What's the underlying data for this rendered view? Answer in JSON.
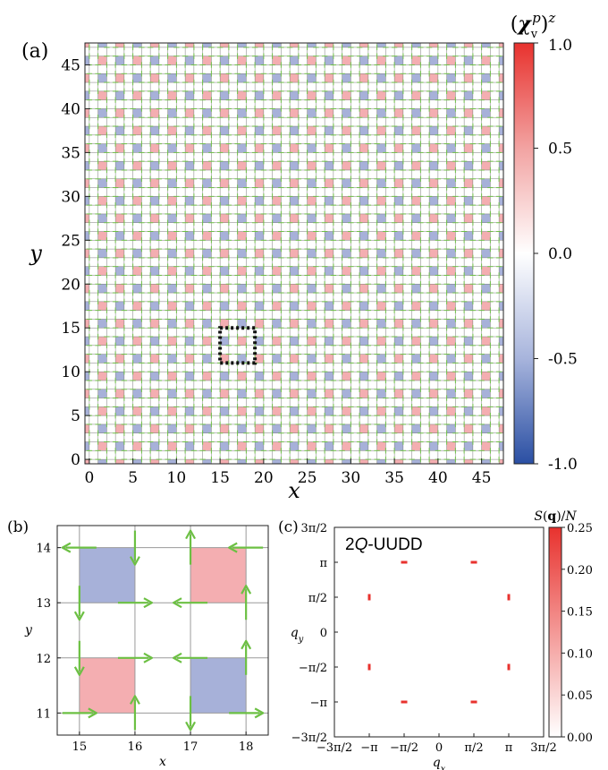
{
  "chart_data": [
    {
      "type": "heatmap",
      "panel": "(a)",
      "xlabel": "x",
      "ylabel": "y",
      "xlim": [
        -0.5,
        47.5
      ],
      "ylim": [
        -0.5,
        47.5
      ],
      "xticks": [
        0,
        5,
        10,
        15,
        20,
        25,
        30,
        35,
        40,
        45
      ],
      "yticks": [
        0,
        5,
        10,
        15,
        20,
        25,
        30,
        35,
        40,
        45
      ],
      "colorbar": {
        "title": "(χ_v^p)^z",
        "range": [
          -1.0,
          1.0
        ],
        "tick_values": [
          1.0,
          0.5,
          0.0,
          -0.5,
          -1.0
        ],
        "tick_labels": [
          "1.0",
          "0.5",
          "0.0",
          "-0.5",
          "-1.0"
        ],
        "colormap": [
          "#2a4fa3",
          "#ffffff",
          "#e8322e"
        ]
      },
      "pattern": {
        "description": "period-4 checkerboard of scalar chirality on plaquettes with green in-plane spin arrows",
        "positive_plaquettes_xy": [
          [
            15,
            11
          ],
          [
            17,
            13
          ]
        ],
        "negative_plaquettes_xy": [
          [
            15,
            13
          ],
          [
            17,
            11
          ]
        ],
        "positive_value": 0.35,
        "negative_value": -0.35
      },
      "highlight_box": {
        "x": [
          15,
          19
        ],
        "y": [
          11,
          15
        ]
      }
    },
    {
      "type": "heatmap",
      "panel": "(b)",
      "xlabel": "x",
      "ylabel": "y",
      "xlim": [
        14.6,
        18.4
      ],
      "ylim": [
        10.6,
        14.4
      ],
      "xticks": [
        15,
        16,
        17,
        18
      ],
      "yticks": [
        11,
        12,
        13,
        14
      ],
      "plaquettes": [
        {
          "x": 15,
          "y": 13,
          "sign": -1
        },
        {
          "x": 17,
          "y": 13,
          "sign": 1
        },
        {
          "x": 15,
          "y": 11,
          "sign": 1
        },
        {
          "x": 17,
          "y": 11,
          "sign": -1
        }
      ],
      "spins": [
        {
          "x": 15,
          "y": 14,
          "sx": -1,
          "sy": 0
        },
        {
          "x": 16,
          "y": 14,
          "sx": 0,
          "sy": -1
        },
        {
          "x": 17,
          "y": 14,
          "sx": 0,
          "sy": 1
        },
        {
          "x": 18,
          "y": 14,
          "sx": -1,
          "sy": 0
        },
        {
          "x": 15,
          "y": 13,
          "sx": 0,
          "sy": -1
        },
        {
          "x": 16,
          "y": 13,
          "sx": 1,
          "sy": 0
        },
        {
          "x": 17,
          "y": 13,
          "sx": -1,
          "sy": 0
        },
        {
          "x": 18,
          "y": 13,
          "sx": 0,
          "sy": 1
        },
        {
          "x": 15,
          "y": 12,
          "sx": 0,
          "sy": -1
        },
        {
          "x": 16,
          "y": 12,
          "sx": 1,
          "sy": 0
        },
        {
          "x": 17,
          "y": 12,
          "sx": -1,
          "sy": 0
        },
        {
          "x": 18,
          "y": 12,
          "sx": 0,
          "sy": 1
        },
        {
          "x": 15,
          "y": 11,
          "sx": 1,
          "sy": 0
        },
        {
          "x": 16,
          "y": 11,
          "sx": 0,
          "sy": 1
        },
        {
          "x": 17,
          "y": 11,
          "sx": 0,
          "sy": -1
        },
        {
          "x": 18,
          "y": 11,
          "sx": 1,
          "sy": 0
        }
      ]
    },
    {
      "type": "scatter",
      "panel": "(c)",
      "title": "2Q-UUDD",
      "xlabel": "q_x",
      "ylabel": "q_y",
      "xlim": [
        -4.712,
        4.712
      ],
      "ylim": [
        -4.712,
        4.712
      ],
      "tick_values": [
        -4.712,
        -3.1416,
        -1.5708,
        0,
        1.5708,
        3.1416,
        4.712
      ],
      "tick_labels": [
        "−3π/2",
        "−π",
        "−π/2",
        "0",
        "π/2",
        "π",
        "3π/2"
      ],
      "points": [
        {
          "x": -1.5708,
          "y": 3.1416,
          "v": 0.25,
          "orient": "h"
        },
        {
          "x": 1.5708,
          "y": 3.1416,
          "v": 0.25,
          "orient": "h"
        },
        {
          "x": -3.1416,
          "y": 1.5708,
          "v": 0.25,
          "orient": "v"
        },
        {
          "x": 3.1416,
          "y": 1.5708,
          "v": 0.25,
          "orient": "v"
        },
        {
          "x": -3.1416,
          "y": -1.5708,
          "v": 0.25,
          "orient": "v"
        },
        {
          "x": 3.1416,
          "y": -1.5708,
          "v": 0.25,
          "orient": "v"
        },
        {
          "x": -1.5708,
          "y": -3.1416,
          "v": 0.25,
          "orient": "h"
        },
        {
          "x": 1.5708,
          "y": -3.1416,
          "v": 0.25,
          "orient": "h"
        }
      ],
      "colorbar": {
        "title": "S(q)/N",
        "range": [
          0,
          0.25
        ],
        "tick_values": [
          0.25,
          0.2,
          0.15,
          0.1,
          0.05,
          0.0
        ],
        "tick_labels": [
          "0.25",
          "0.20",
          "0.15",
          "0.10",
          "0.05",
          "0.00"
        ],
        "colormap": [
          "#ffffff",
          "#e8322e"
        ]
      }
    }
  ]
}
